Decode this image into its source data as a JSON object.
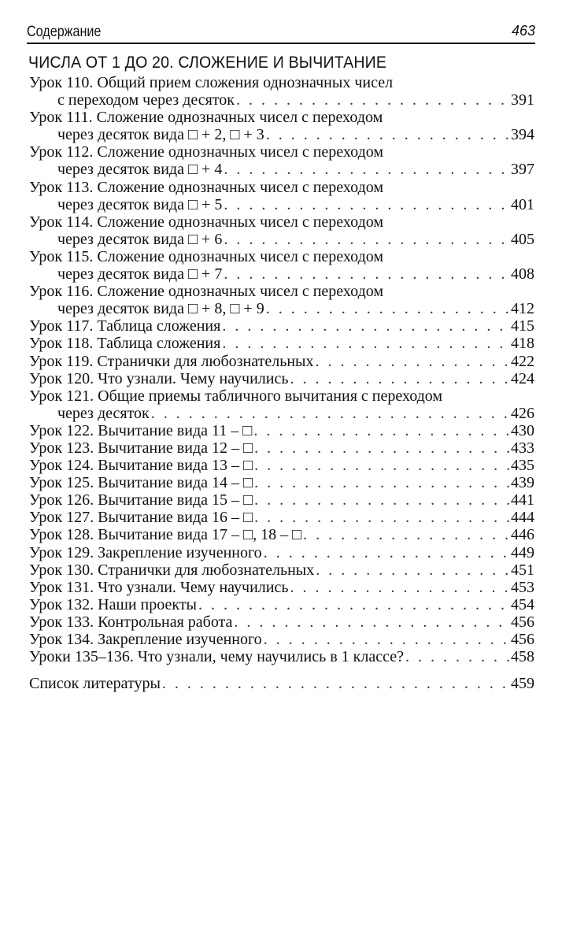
{
  "running_head": {
    "title": "Содержание",
    "page": "463"
  },
  "section_title": "ЧИСЛА ОТ 1 ДО 20. СЛОЖЕНИЕ И ВЫЧИТАНИЕ",
  "entries": [
    {
      "lines": [
        "Урок 110. Общий прием сложения однозначных чисел",
        "с переходом через десяток"
      ],
      "page": "391"
    },
    {
      "lines": [
        "Урок 111. Сложение однозначных чисел с переходом",
        "через десяток вида □ + 2, □ + 3"
      ],
      "page": "394"
    },
    {
      "lines": [
        "Урок 112. Сложение однозначных чисел с переходом",
        "через десяток вида □ + 4"
      ],
      "page": "397"
    },
    {
      "lines": [
        "Урок 113. Сложение однозначных чисел с переходом",
        "через десяток вида □ + 5"
      ],
      "page": "401"
    },
    {
      "lines": [
        "Урок 114. Сложение однозначных чисел с переходом",
        "через десяток вида □ + 6"
      ],
      "page": "405"
    },
    {
      "lines": [
        "Урок 115. Сложение однозначных чисел с переходом",
        "через десяток вида □ + 7"
      ],
      "page": "408"
    },
    {
      "lines": [
        "Урок 116. Сложение однозначных чисел с переходом",
        "через десяток вида □ + 8, □ + 9"
      ],
      "page": "412"
    },
    {
      "lines": [
        "Урок 117. Таблица сложения"
      ],
      "page": "415"
    },
    {
      "lines": [
        "Урок 118. Таблица сложения"
      ],
      "page": "418"
    },
    {
      "lines": [
        "Урок 119. Странички для любознательных"
      ],
      "page": "422"
    },
    {
      "lines": [
        "Урок 120. Что узнали. Чему научились"
      ],
      "page": "424"
    },
    {
      "lines": [
        "Урок 121. Общие приемы табличного вычитания с переходом",
        "через десяток"
      ],
      "page": "426"
    },
    {
      "lines": [
        "Урок 122. Вычитание вида 11 – □"
      ],
      "page": "430"
    },
    {
      "lines": [
        "Урок 123. Вычитание вида 12 – □"
      ],
      "page": "433"
    },
    {
      "lines": [
        "Урок 124. Вычитание вида 13 – □"
      ],
      "page": "435"
    },
    {
      "lines": [
        "Урок 125. Вычитание вида 14 – □"
      ],
      "page": "439"
    },
    {
      "lines": [
        "Урок 126. Вычитание вида 15 – □"
      ],
      "page": "441"
    },
    {
      "lines": [
        "Урок 127. Вычитание вида 16 – □"
      ],
      "page": "444"
    },
    {
      "lines": [
        "Урок 128. Вычитание вида 17 – □, 18 – □"
      ],
      "page": "446"
    },
    {
      "lines": [
        "Урок 129. Закрепление изученного"
      ],
      "page": "449"
    },
    {
      "lines": [
        "Урок 130. Странички для любознательных"
      ],
      "page": "451"
    },
    {
      "lines": [
        "Урок 131. Что узнали. Чему научились"
      ],
      "page": "453"
    },
    {
      "lines": [
        "Урок 132. Наши проекты"
      ],
      "page": "454"
    },
    {
      "lines": [
        "Урок 133. Контрольная работа"
      ],
      "page": "456"
    },
    {
      "lines": [
        "Урок 134. Закрепление изученного"
      ],
      "page": "456"
    },
    {
      "lines": [
        "Уроки 135–136. Что узнали, чему научились в 1 классе?"
      ],
      "page": "458"
    }
  ],
  "bibliography": {
    "lines": [
      "Список литературы"
    ],
    "page": "459"
  }
}
